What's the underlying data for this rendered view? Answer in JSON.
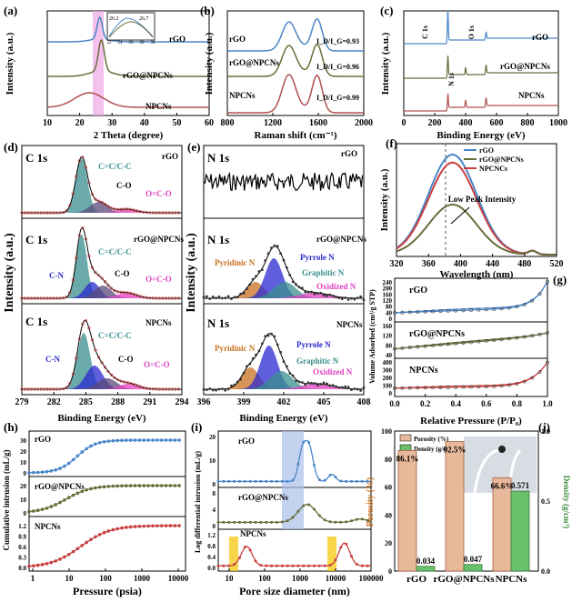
{
  "chart_data": [
    {
      "panel": "a",
      "type": "line",
      "title": "",
      "xlabel": "2 Theta (degree)",
      "ylabel": "Intensity (a.u.)",
      "xlim": [
        10,
        60
      ],
      "xticks": [
        "10",
        "20",
        "30",
        "40",
        "50",
        "60"
      ],
      "series": [
        {
          "name": "rGO",
          "color": "#4a86c8",
          "peak": 26.2
        },
        {
          "name": "rGO@NPCNs",
          "color": "#6b6b3a",
          "peak": 26.7
        },
        {
          "name": "NPCNs",
          "color": "#b05050",
          "peak": 23.0
        }
      ],
      "inset": {
        "xticks": [
          "22",
          "24",
          "26",
          "28",
          "30"
        ],
        "labels": [
          "26.2",
          "26.7"
        ]
      }
    },
    {
      "panel": "b",
      "type": "line",
      "xlabel": "Raman shift (cm⁻¹)",
      "ylabel": "Intensity (a.u.)",
      "xlim": [
        800,
        2000
      ],
      "xticks": [
        "800",
        "1200",
        "1600",
        "2000"
      ],
      "series": [
        {
          "name": "rGO",
          "color": "#4a86c8",
          "ratio": "I_D/I_G=0.93"
        },
        {
          "name": "rGO@NPCNs",
          "color": "#6b6b3a",
          "ratio": "I_D/I_G=0.96"
        },
        {
          "name": "NPCNs",
          "color": "#b05050",
          "ratio": "I_D/I_G=0.99"
        }
      ]
    },
    {
      "panel": "c",
      "type": "line",
      "xlabel": "Binding Energy (eV)",
      "ylabel": "Intensity (a.u.)",
      "xlim": [
        0,
        1000
      ],
      "xticks": [
        "0",
        "200",
        "400",
        "600",
        "800",
        "1000"
      ],
      "peaks": [
        "C 1s",
        "N 1s",
        "O 1s"
      ],
      "series": [
        {
          "name": "rGO"
        },
        {
          "name": "rGO@NPCNs"
        },
        {
          "name": "NPCNs"
        }
      ]
    },
    {
      "panel": "d",
      "type": "line",
      "xlabel": "Binding Energy (eV)",
      "ylabel": "Intensity (a.u.)",
      "xticks": [
        "279",
        "282",
        "285",
        "288",
        "291",
        "294"
      ],
      "subplots": [
        {
          "sample": "rGO",
          "label": "C 1s",
          "components": [
            "C=C/C-C",
            "C-O",
            "O=C-O"
          ]
        },
        {
          "sample": "rGO@NPCNs",
          "label": "C 1s",
          "components": [
            "C-N",
            "C=C/C-C",
            "C-O",
            "O=C-O"
          ]
        },
        {
          "sample": "NPCNs",
          "label": "C 1s",
          "components": [
            "C-N",
            "C=C/C-C",
            "C-O",
            "O=C-O"
          ]
        }
      ]
    },
    {
      "panel": "e",
      "type": "line",
      "xlabel": "Binding Energy (eV)",
      "ylabel": "Intensity (a.u.)",
      "xticks": [
        "396",
        "399",
        "402",
        "405",
        "408"
      ],
      "subplots": [
        {
          "sample": "rGO",
          "label": "N 1s",
          "components": []
        },
        {
          "sample": "rGO@NPCNs",
          "label": "N 1s",
          "components": [
            "Pyrrole N",
            "Pyridinic N",
            "Graphitic N",
            "Oxidized N"
          ]
        },
        {
          "sample": "NPCNs",
          "label": "N 1s",
          "components": [
            "Pyrrole N",
            "Pyridinic N",
            "Graphitic N",
            "Oxidized N"
          ]
        }
      ]
    },
    {
      "panel": "f",
      "type": "line",
      "xlabel": "Wavelength (nm)",
      "ylabel": "Intensity (a.u.)",
      "xlim": [
        320,
        520
      ],
      "xticks": [
        "320",
        "360",
        "400",
        "440",
        "480",
        "520"
      ],
      "annotation": "Low Peak Intensity",
      "series": [
        {
          "name": "rGO",
          "color": "#4a86c8",
          "peak_height": 1.0
        },
        {
          "name": "rGO@NPCNs",
          "color": "#6b6b3a",
          "peak_height": 0.5
        },
        {
          "name": "NPCNCs",
          "color": "#c84040",
          "peak_height": 0.92
        }
      ]
    },
    {
      "panel": "g",
      "type": "line",
      "xlabel": "Relative Pressure (P/P₀)",
      "ylabel": "Volume Adsorbed (cm³/g STP)",
      "xlim": [
        0,
        1.0
      ],
      "xticks": [
        "0.0",
        "0.2",
        "0.4",
        "0.6",
        "0.8",
        "1.0"
      ],
      "subplots": [
        {
          "sample": "rGO",
          "yticks": [
            "0",
            "40",
            "80",
            "120",
            "160",
            "200",
            "240"
          ],
          "color": "#4a86c8"
        },
        {
          "sample": "rGO@NPCNs",
          "yticks": [
            "40",
            "80",
            "120",
            "160"
          ],
          "color": "#6b6b3a"
        },
        {
          "sample": "NPCNs",
          "yticks": [
            "0",
            "100",
            "200",
            "300",
            "400"
          ],
          "color": "#c84040"
        }
      ]
    },
    {
      "panel": "h",
      "type": "line",
      "xlabel": "Pressure (psia)",
      "ylabel": "Cumulative intrusion (mL/g)",
      "xticks": [
        "1",
        "10",
        "100",
        "1000",
        "10000"
      ],
      "subplots": [
        {
          "sample": "rGO",
          "yticks": [
            "0",
            "10",
            "20",
            "30"
          ],
          "color": "#4a86c8"
        },
        {
          "sample": "rGO@NPCNs",
          "yticks": [
            "0",
            "10",
            "20"
          ],
          "color": "#6b6b3a"
        },
        {
          "sample": "NPCNs",
          "yticks": [
            "0.0",
            "0.3",
            "0.6",
            "0.9",
            "1.2"
          ],
          "color": "#c84040"
        }
      ]
    },
    {
      "panel": "i",
      "type": "line",
      "xlabel": "Pore size diameter (nm)",
      "ylabel": "Log differential intrusion (mL/g)",
      "xticks": [
        "10",
        "100",
        "1000",
        "10000",
        "100000"
      ],
      "subplots": [
        {
          "sample": "rGO",
          "yticks": [
            "0",
            "10",
            "20"
          ],
          "color": "#4a86c8"
        },
        {
          "sample": "rGO@NPCNs",
          "yticks": [
            "0",
            "4",
            "8"
          ],
          "color": "#6b6b3a"
        },
        {
          "sample": "NPCNs",
          "yticks": [
            "0.0",
            "0.4",
            "0.8",
            "1.2"
          ],
          "color": "#c84040"
        }
      ]
    },
    {
      "panel": "j",
      "type": "bar",
      "categories": [
        "rGO",
        "rGO@NPCNs",
        "NPCNs"
      ],
      "ylabel": "Porosity (%)",
      "y2label": "Density (g/cm³)",
      "ylim": [
        0,
        100
      ],
      "y2lim": [
        0,
        1.0
      ],
      "yticks": [
        "0",
        "20",
        "40",
        "60",
        "80",
        "100"
      ],
      "y2ticks": [
        "0.0",
        "0.5",
        "1.0"
      ],
      "series": [
        {
          "name": "Porosity (%)",
          "values": [
            86.1,
            92.5,
            66.6
          ],
          "labels": [
            "86.1%",
            "92.5%",
            "66.6%"
          ],
          "color": "#e8b89a"
        },
        {
          "name": "Density (g/cm³)",
          "values": [
            0.034,
            0.047,
            0.571
          ],
          "labels": [
            "0.034",
            "0.047",
            "0.571"
          ],
          "color": "#6abf69"
        }
      ]
    }
  ],
  "panel_labels": [
    "(a)",
    "(b)",
    "(c)",
    "(d)",
    "(e)",
    "(f)",
    "(g)",
    "(h)",
    "(i)",
    "(j)"
  ]
}
